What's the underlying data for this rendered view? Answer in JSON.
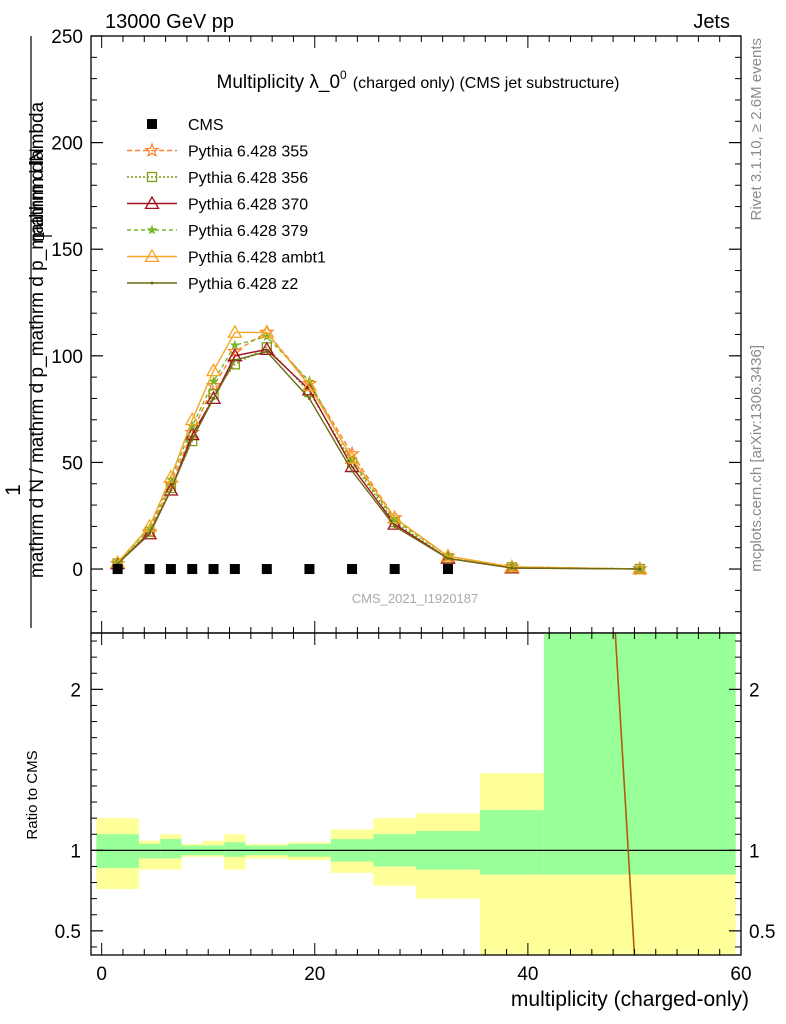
{
  "header": {
    "left": "13000 GeV pp",
    "right": "Jets"
  },
  "side_labels": {
    "rivet": "Rivet 3.1.10, ≥ 2.6M events",
    "mcplots": "mcplots.cern.ch [arXiv:1306.3436]"
  },
  "watermark": "CMS_2021_I1920187",
  "chart_data": [
    {
      "type": "line",
      "title": "Multiplicity λ_0⁰",
      "title_main": "Multiplicity λ_0",
      "title_sup": "0",
      "subtitle": "(charged only) (CMS jet substructure)",
      "ylabel_num": "1",
      "ylabel_num2": "mathrm dN",
      "ylabel_den": "mathrm d N / mathrm d p_mathrm d p_mathrm d lambda",
      "ylabel_sub": "T",
      "ylim": [
        -30,
        250
      ],
      "xlim": [
        -1,
        60
      ],
      "yticks": [
        0,
        50,
        100,
        150,
        200,
        250
      ],
      "series": [
        {
          "name": "CMS",
          "color": "#000000",
          "marker": "square",
          "x": [
            1.5,
            4.5,
            6.5,
            8.5,
            10.5,
            12.5,
            15.5,
            19.5,
            23.5,
            27.5,
            32.5
          ],
          "y": [
            0,
            0,
            0,
            0,
            0,
            0,
            0,
            0,
            0,
            0,
            0
          ]
        },
        {
          "name": "Pythia 6.428 355",
          "color": "#ff7f2a",
          "dash": "5,3",
          "marker": "star",
          "x": [
            1.5,
            4.5,
            6.5,
            8.5,
            10.5,
            12.5,
            15.5,
            19.5,
            23.5,
            27.5,
            32.5,
            38.5,
            50.5
          ],
          "y": [
            2.5,
            17.5,
            40,
            64,
            86,
            102,
            111,
            87,
            54,
            24,
            6,
            1,
            0
          ]
        },
        {
          "name": "Pythia 6.428 356",
          "color": "#7fa013",
          "dash": "2,2",
          "marker": "open-square",
          "x": [
            1.5,
            4.5,
            6.5,
            8.5,
            10.5,
            12.5,
            15.5,
            19.5,
            23.5,
            27.5,
            32.5,
            38.5,
            50.5
          ],
          "y": [
            2.6,
            17.5,
            38,
            60,
            82,
            96,
            104,
            83,
            50,
            22,
            5,
            0.8,
            0
          ]
        },
        {
          "name": "Pythia 6.428 370",
          "color": "#a0101f",
          "dash": "",
          "marker": "open-triangle",
          "x": [
            1.5,
            4.5,
            6.5,
            8.5,
            10.5,
            12.5,
            15.5,
            19.5,
            23.5,
            27.5,
            32.5,
            38.5,
            50.5
          ],
          "y": [
            2.5,
            16.5,
            37,
            63,
            80,
            100,
            103,
            84,
            48,
            21,
            5,
            0.5,
            0
          ]
        },
        {
          "name": "Pythia 6.428 379",
          "color": "#76b82a",
          "dash": "4,3",
          "marker": "star-small",
          "x": [
            1.5,
            4.5,
            6.5,
            8.5,
            10.5,
            12.5,
            15.5,
            19.5,
            23.5,
            27.5,
            32.5,
            38.5,
            50.5
          ],
          "y": [
            2.8,
            19,
            42,
            67,
            88,
            105,
            109,
            88,
            51,
            23,
            6,
            1,
            0
          ]
        },
        {
          "name": "Pythia 6.428 ambt1",
          "color": "#f5a623",
          "dash": "",
          "marker": "open-triangle",
          "x": [
            1.5,
            4.5,
            6.5,
            8.5,
            10.5,
            12.5,
            15.5,
            19.5,
            23.5,
            27.5,
            32.5,
            38.5,
            50.5
          ],
          "y": [
            3,
            20,
            43,
            70,
            93,
            111,
            111,
            86,
            52,
            24,
            6,
            1,
            0
          ]
        },
        {
          "name": "Pythia 6.428 z2",
          "color": "#6b6b10",
          "dash": "",
          "marker": "dot",
          "x": [
            1.5,
            4.5,
            6.5,
            8.5,
            10.5,
            12.5,
            15.5,
            19.5,
            23.5,
            27.5,
            32.5,
            38.5,
            50.5
          ],
          "y": [
            2.4,
            17,
            37,
            61,
            80,
            98,
            102,
            80,
            46,
            20,
            5,
            0.5,
            0
          ]
        }
      ],
      "legend_position": "top-left"
    },
    {
      "type": "line",
      "ylabel": "Ratio to CMS",
      "xlabel": "multiplicity (charged-only)",
      "ylim": [
        0.35,
        2.35
      ],
      "xlim": [
        -1,
        60
      ],
      "xticks": [
        0,
        20,
        40,
        60
      ],
      "yticks": [
        0.5,
        1,
        2
      ],
      "bands": {
        "edges": [
          -0.5,
          3.5,
          5.5,
          7.5,
          9.5,
          11.5,
          13.5,
          17.5,
          21.5,
          25.5,
          29.5,
          35.5,
          41.5,
          59.5
        ],
        "stat_lo": [
          0.89,
          0.95,
          0.95,
          0.97,
          0.97,
          0.96,
          0.97,
          0.96,
          0.93,
          0.9,
          0.88,
          0.85,
          0.85
        ],
        "stat_hi": [
          1.1,
          1.04,
          1.07,
          1.03,
          1.03,
          1.05,
          1.03,
          1.04,
          1.07,
          1.1,
          1.12,
          1.25,
          2.35
        ],
        "tot_lo": [
          0.76,
          0.88,
          0.88,
          0.96,
          0.96,
          0.88,
          0.95,
          0.94,
          0.86,
          0.78,
          0.7,
          0.35,
          0.35
        ],
        "tot_hi": [
          1.2,
          1.06,
          1.1,
          1.04,
          1.06,
          1.1,
          1.04,
          1.05,
          1.13,
          1.2,
          1.23,
          1.48,
          2.35
        ]
      },
      "ratio_line": {
        "color": "#b35a10",
        "x": [
          48.2,
          50.0
        ],
        "y": [
          2.35,
          0.35
        ]
      }
    }
  ]
}
